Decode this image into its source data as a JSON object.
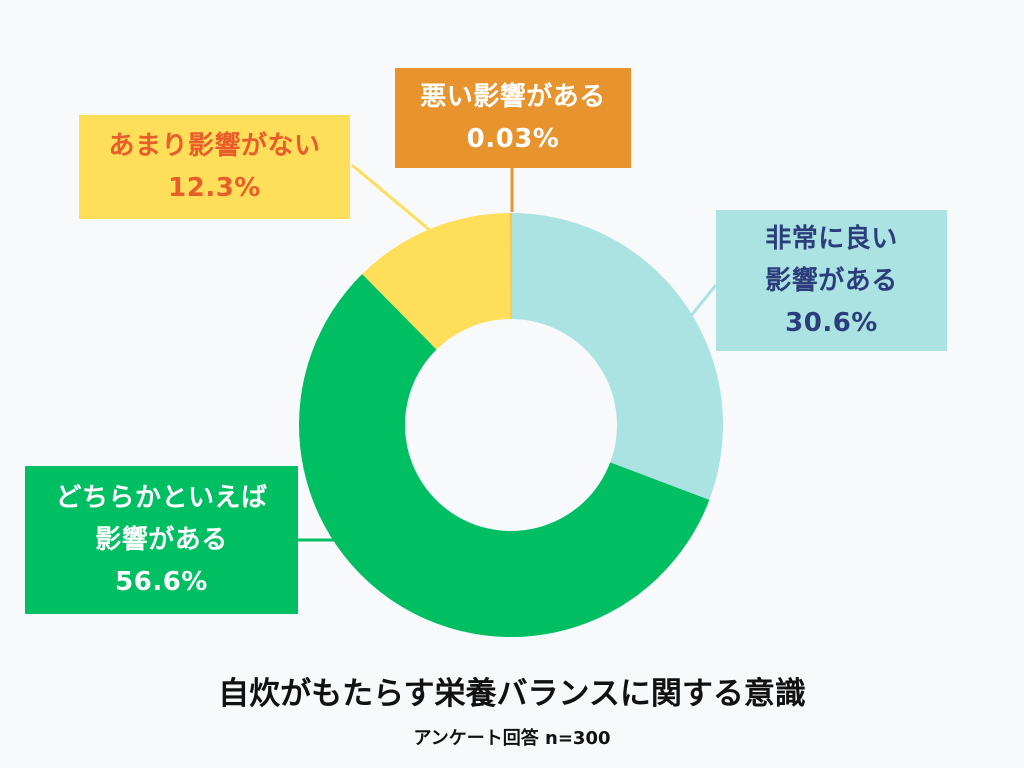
{
  "chart_data": {
    "type": "pie",
    "style": "donut",
    "title": "自炊がもたらす栄養バランスに関する意識",
    "subtitle": "アンケート回答 n=300",
    "slices": [
      {
        "key": "very_good",
        "label_lines": [
          "非常に良い",
          "影響がある"
        ],
        "value_text": "30.6%",
        "value": 30.6,
        "color": "#abe2e2",
        "text_color": "#2b3e7b"
      },
      {
        "key": "somewhat",
        "label_lines": [
          "どちらかといえば",
          "影響がある"
        ],
        "value_text": "56.6%",
        "value": 56.6,
        "color": "#00bf63",
        "text_color": "#ffffff"
      },
      {
        "key": "not_much",
        "label_lines": [
          "あまり影響がない"
        ],
        "value_text": "12.3%",
        "value": 12.3,
        "color": "#ffde59",
        "text_color": "#e85d2a"
      },
      {
        "key": "bad",
        "label_lines": [
          "悪い影響がある"
        ],
        "value_text": "0.03%",
        "value": 0.03,
        "color": "#e8942e",
        "text_color": "#ffffff"
      }
    ]
  }
}
